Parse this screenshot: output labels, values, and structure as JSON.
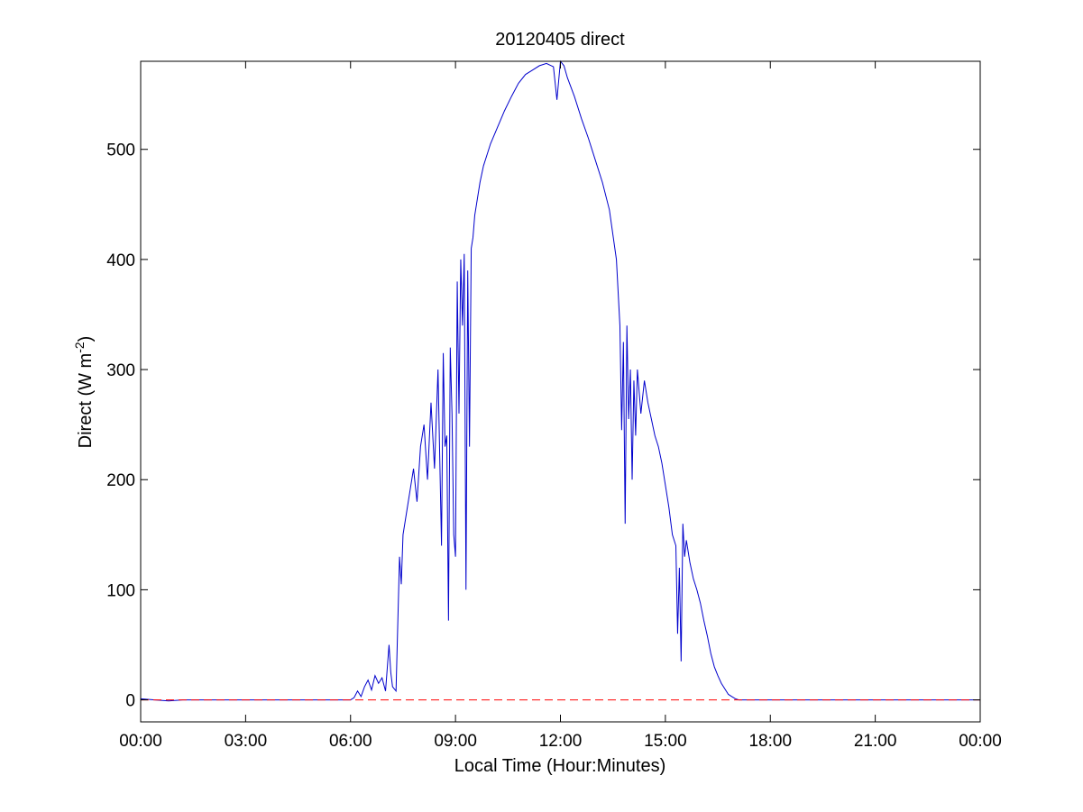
{
  "chart_data": {
    "type": "line",
    "title": "20120405 direct",
    "xlabel": "Local Time (Hour:Minutes)",
    "ylabel_main": "Direct (W m",
    "ylabel_sup": "-2",
    "ylabel_close": ")",
    "xlim": [
      0,
      24
    ],
    "ylim": [
      -20,
      580
    ],
    "x_ticks": [
      0,
      3,
      6,
      9,
      12,
      15,
      18,
      21,
      24
    ],
    "x_tick_labels": [
      "00:00",
      "03:00",
      "06:00",
      "09:00",
      "12:00",
      "15:00",
      "18:00",
      "21:00",
      "00:00"
    ],
    "y_ticks": [
      0,
      100,
      200,
      300,
      400,
      500
    ],
    "y_tick_labels": [
      "0",
      "100",
      "200",
      "300",
      "400",
      "500"
    ],
    "grid": false,
    "series": [
      {
        "color": "#0000cc",
        "style": "solid",
        "x": [
          0,
          0.4,
          0.8,
          1.2,
          3,
          6,
          6.1,
          6.2,
          6.3,
          6.4,
          6.5,
          6.6,
          6.7,
          6.8,
          6.9,
          7.0,
          7.1,
          7.15,
          7.2,
          7.3,
          7.4,
          7.45,
          7.5,
          7.6,
          7.7,
          7.8,
          7.9,
          8.0,
          8.1,
          8.2,
          8.3,
          8.4,
          8.5,
          8.6,
          8.65,
          8.7,
          8.75,
          8.8,
          8.85,
          8.9,
          8.95,
          9.0,
          9.05,
          9.1,
          9.15,
          9.2,
          9.25,
          9.3,
          9.35,
          9.4,
          9.45,
          9.5,
          9.55,
          9.6,
          9.7,
          9.8,
          9.9,
          10.0,
          10.2,
          10.4,
          10.6,
          10.8,
          11.0,
          11.2,
          11.4,
          11.6,
          11.8,
          11.9,
          12.0,
          12.1,
          12.2,
          12.4,
          12.6,
          12.8,
          13.0,
          13.2,
          13.4,
          13.6,
          13.7,
          13.75,
          13.8,
          13.85,
          13.9,
          13.95,
          14.0,
          14.05,
          14.1,
          14.15,
          14.2,
          14.3,
          14.4,
          14.5,
          14.6,
          14.7,
          14.8,
          14.9,
          15.0,
          15.1,
          15.2,
          15.3,
          15.35,
          15.4,
          15.45,
          15.5,
          15.55,
          15.6,
          15.7,
          15.8,
          15.9,
          16.0,
          16.1,
          16.2,
          16.3,
          16.4,
          16.5,
          16.6,
          16.7,
          16.8,
          16.9,
          17.0,
          17.1,
          17.2,
          17.3,
          17.4,
          18,
          21,
          23.5,
          23.7,
          24
        ],
        "values": [
          1,
          0,
          -1,
          0,
          0,
          0,
          2,
          8,
          3,
          12,
          18,
          9,
          22,
          15,
          20,
          8,
          50,
          25,
          12,
          8,
          130,
          105,
          150,
          170,
          190,
          210,
          180,
          230,
          250,
          200,
          270,
          210,
          300,
          140,
          315,
          230,
          240,
          72,
          320,
          260,
          150,
          130,
          380,
          260,
          400,
          340,
          405,
          100,
          390,
          230,
          410,
          420,
          440,
          450,
          470,
          485,
          495,
          505,
          520,
          535,
          548,
          560,
          568,
          572,
          576,
          578,
          575,
          545,
          580,
          576,
          565,
          548,
          528,
          510,
          490,
          470,
          445,
          400,
          340,
          245,
          325,
          160,
          340,
          255,
          300,
          200,
          290,
          240,
          300,
          260,
          290,
          270,
          255,
          240,
          230,
          215,
          195,
          175,
          150,
          140,
          60,
          120,
          35,
          160,
          130,
          145,
          125,
          110,
          100,
          88,
          72,
          58,
          42,
          30,
          22,
          15,
          10,
          5,
          3,
          1,
          0,
          0,
          0,
          0,
          0,
          0,
          0,
          0,
          0
        ]
      },
      {
        "color": "#ff0000",
        "style": "dashed",
        "x": [
          0,
          24
        ],
        "values": [
          0,
          0
        ]
      }
    ]
  }
}
